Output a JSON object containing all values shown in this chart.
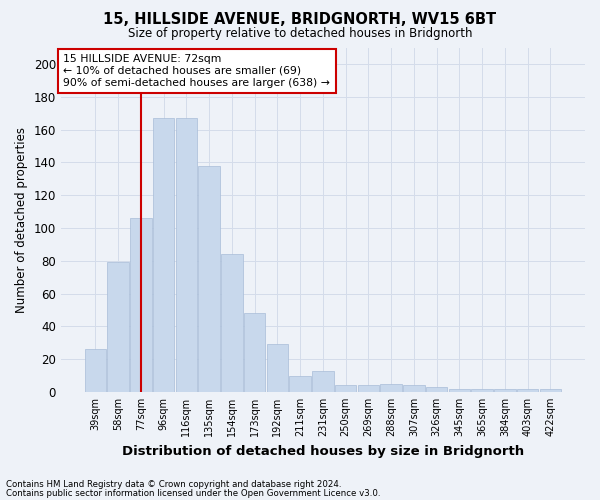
{
  "title1": "15, HILLSIDE AVENUE, BRIDGNORTH, WV15 6BT",
  "title2": "Size of property relative to detached houses in Bridgnorth",
  "xlabel": "Distribution of detached houses by size in Bridgnorth",
  "ylabel": "Number of detached properties",
  "categories": [
    "39sqm",
    "58sqm",
    "77sqm",
    "96sqm",
    "116sqm",
    "135sqm",
    "154sqm",
    "173sqm",
    "192sqm",
    "211sqm",
    "231sqm",
    "250sqm",
    "269sqm",
    "288sqm",
    "307sqm",
    "326sqm",
    "345sqm",
    "365sqm",
    "384sqm",
    "403sqm",
    "422sqm"
  ],
  "values": [
    26,
    79,
    106,
    167,
    167,
    138,
    84,
    48,
    29,
    10,
    13,
    4,
    4,
    5,
    4,
    3,
    2,
    2,
    2,
    2,
    2
  ],
  "bar_color": "#c8d8ec",
  "bar_edge_color": "#a8bdd8",
  "grid_color": "#d4dcea",
  "vline_x": 2.0,
  "vline_color": "#cc0000",
  "annotation_text": "15 HILLSIDE AVENUE: 72sqm\n← 10% of detached houses are smaller (69)\n90% of semi-detached houses are larger (638) →",
  "annotation_box_color": "#ffffff",
  "annotation_box_edge": "#cc0000",
  "ylim": [
    0,
    210
  ],
  "yticks": [
    0,
    20,
    40,
    60,
    80,
    100,
    120,
    140,
    160,
    180,
    200
  ],
  "footer1": "Contains HM Land Registry data © Crown copyright and database right 2024.",
  "footer2": "Contains public sector information licensed under the Open Government Licence v3.0.",
  "bg_color": "#eef2f8"
}
